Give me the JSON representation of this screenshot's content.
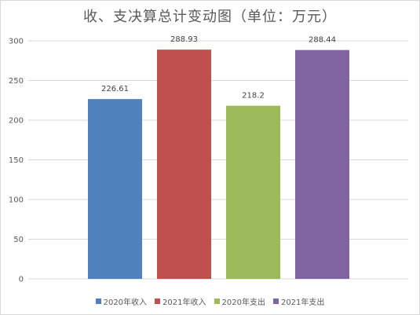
{
  "chart_data": {
    "type": "bar",
    "title": "收、支决算总计变动图（单位：万元）",
    "categories": [
      "2020年收入",
      "2021年收入",
      "2020年支出",
      "2021年支出"
    ],
    "values": [
      226.61,
      288.93,
      218.2,
      288.44
    ],
    "value_labels": [
      "226.61",
      "288.93",
      "218.2",
      "288.44"
    ],
    "colors": [
      "#4f81bd",
      "#c0504d",
      "#9bbb59",
      "#8064a2"
    ],
    "ylim": [
      0,
      300
    ],
    "yticks": [
      0,
      50,
      100,
      150,
      200,
      250,
      300
    ],
    "grid": true,
    "legend": "bottom",
    "xlabel": "",
    "ylabel": ""
  }
}
